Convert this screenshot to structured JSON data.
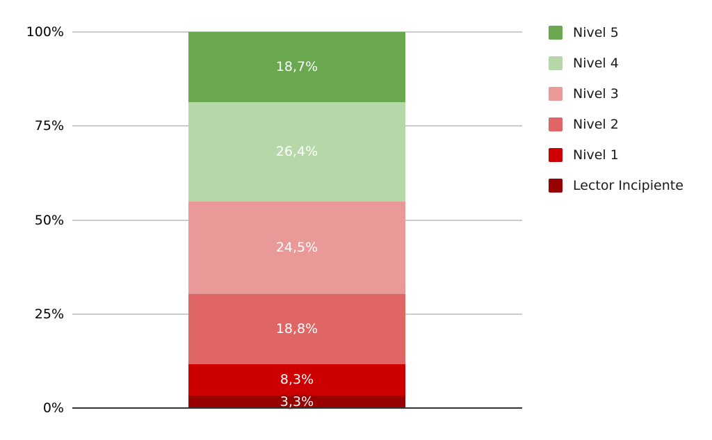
{
  "chart_data": {
    "type": "bar",
    "variant": "stacked-100-percent-column",
    "title": "",
    "xlabel": "",
    "ylabel": "",
    "categories": [
      ""
    ],
    "ylim": [
      0,
      100
    ],
    "yticks": [
      {
        "pct": 0,
        "label": "0%"
      },
      {
        "pct": 25,
        "label": "25%"
      },
      {
        "pct": 50,
        "label": "50%"
      },
      {
        "pct": 75,
        "label": "75%"
      },
      {
        "pct": 100,
        "label": "100%"
      }
    ],
    "grid": true,
    "legend_position": "right",
    "series": [
      {
        "name": "Nivel 5",
        "value": 18.7,
        "value_label": "18,7%",
        "color": "#6aa84f"
      },
      {
        "name": "Nivel 4",
        "value": 26.4,
        "value_label": "26,4%",
        "color": "#b6d7a8"
      },
      {
        "name": "Nivel 3",
        "value": 24.5,
        "value_label": "24,5%",
        "color": "#ea9999"
      },
      {
        "name": "Nivel 2",
        "value": 18.8,
        "value_label": "18,8%",
        "color": "#e06666"
      },
      {
        "name": "Nivel 1",
        "value": 8.3,
        "value_label": "8,3%",
        "color": "#cc0000"
      },
      {
        "name": "Lector Incipiente",
        "value": 3.3,
        "value_label": "3,3%",
        "color": "#990000"
      }
    ],
    "colors": {
      "gridline": "#cccccc",
      "axis_line": "#333333",
      "tick_text": "#000000",
      "legend_text": "#1a1a1a",
      "bar_label_text": "#ffffff",
      "background": "#ffffff"
    }
  }
}
